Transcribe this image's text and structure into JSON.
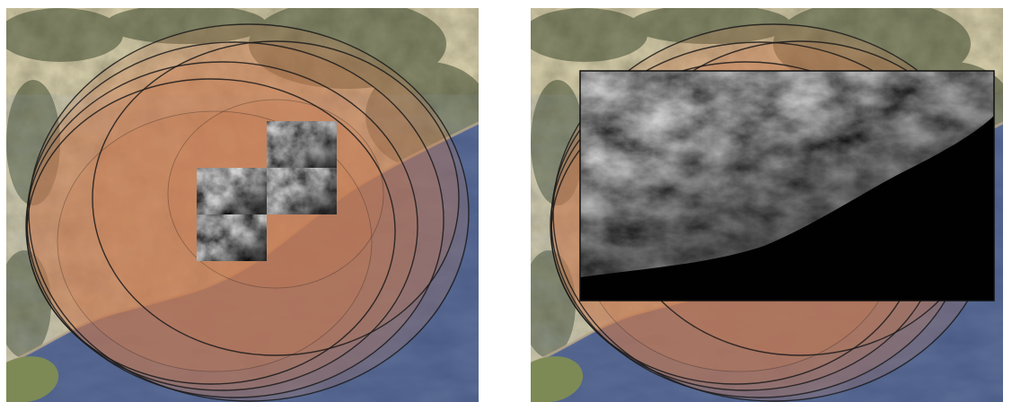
{
  "figure": {
    "panels": [
      {
        "id": "left",
        "description_name": "map-with-tiled-dem-patches",
        "elevation_tiles": [
          {
            "row": 0,
            "col": 1,
            "seed": 11
          },
          {
            "row": 1,
            "col": 0,
            "seed": 23
          },
          {
            "row": 1,
            "col": 1,
            "seed": 37
          },
          {
            "row": 2,
            "col": 0,
            "seed": 51
          }
        ]
      },
      {
        "id": "right",
        "description_name": "map-with-merged-dem",
        "elevation_tiles": []
      }
    ],
    "buffer_ring_count": 7,
    "colors": {
      "buffer_fill": "#c97a52",
      "buffer_stroke": "#1a1a1a",
      "sea": "#4a5c86",
      "land": "#8d8460",
      "forest": "#3f4a30",
      "coast_sand": "#b8a58a"
    }
  }
}
